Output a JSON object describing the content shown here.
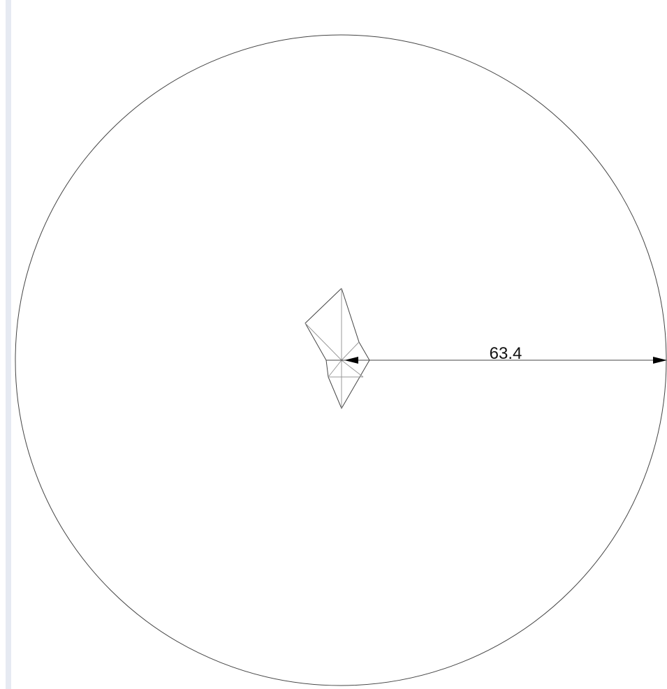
{
  "drawing": {
    "dimension_label": "63.4"
  }
}
